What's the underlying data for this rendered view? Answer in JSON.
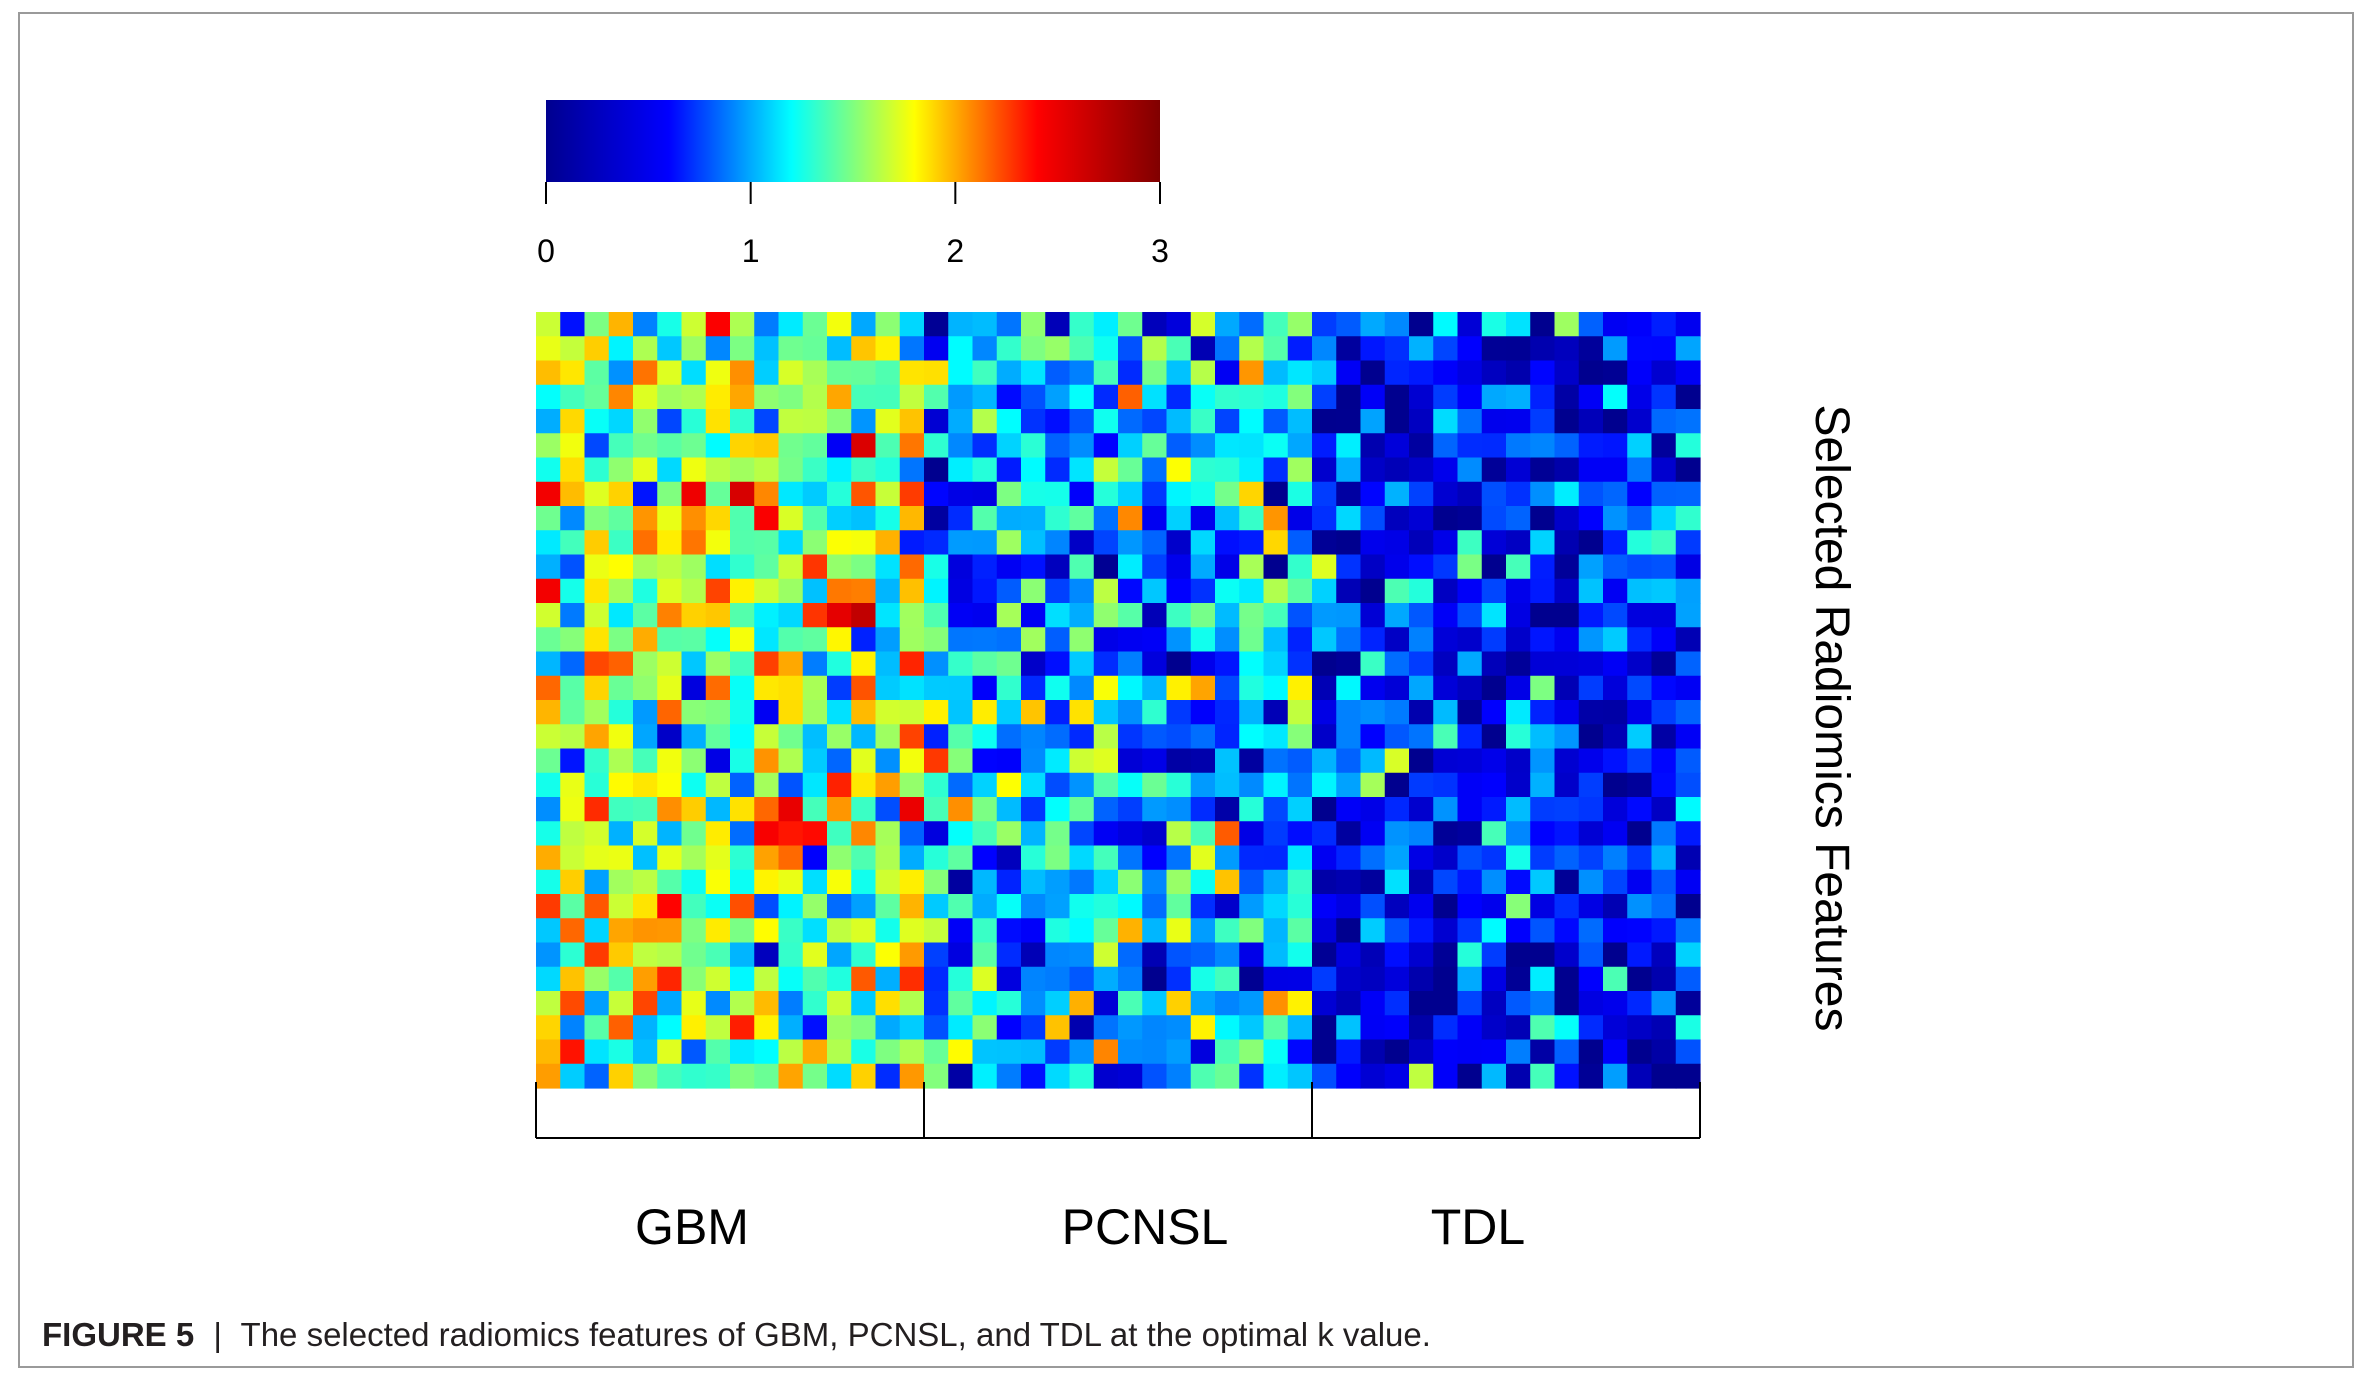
{
  "caption": {
    "label": "FIGURE 5",
    "separator": "|",
    "text": "The selected radiomics features of GBM, PCNSL, and TDL at the optimal k value."
  },
  "chart_data": {
    "type": "heatmap",
    "title": "",
    "ylabel": "Selected Radiomics Features",
    "groups": [
      {
        "name": "GBM",
        "columns": 16
      },
      {
        "name": "PCNSL",
        "columns": 16
      },
      {
        "name": "TDL",
        "columns": 16
      }
    ],
    "rows": 32,
    "colorbar": {
      "ticks": [
        0,
        1,
        2,
        3
      ],
      "tick_labels": [
        "0",
        "1",
        "2",
        "3"
      ],
      "range": [
        0,
        3
      ],
      "colormap": [
        "#00008f",
        "#0000ff",
        "#00ffff",
        "#ffff00",
        "#ff0000",
        "#800000"
      ]
    },
    "group_means": {
      "GBM": 1.55,
      "PCNSL": 1.0,
      "TDL": 0.55
    },
    "value_spread": 0.42,
    "grid": false,
    "legend_position": "top"
  }
}
